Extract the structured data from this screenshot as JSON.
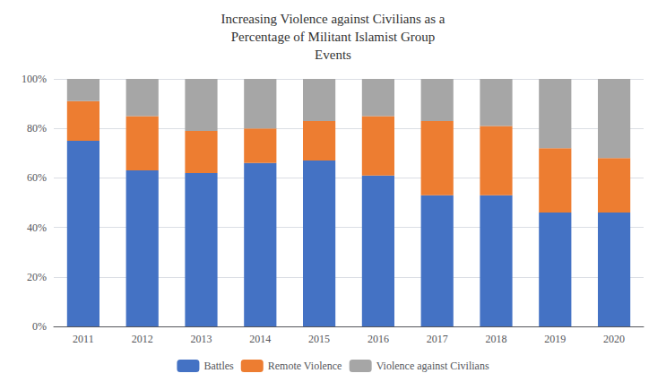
{
  "chart_data": {
    "type": "bar",
    "title": "Increasing Violence against Civilians as a\nPercentage of Militant Islamist Group\nEvents",
    "categories": [
      "2011",
      "2012",
      "2013",
      "2014",
      "2015",
      "2016",
      "2017",
      "2018",
      "2019",
      "2020"
    ],
    "series": [
      {
        "name": "Battles",
        "color": "#4472C4",
        "values": [
          75,
          63,
          62,
          66,
          67,
          61,
          53,
          53,
          46,
          46
        ]
      },
      {
        "name": "Remote Violence",
        "color": "#ED7D31",
        "values": [
          16,
          22,
          17,
          14,
          16,
          24,
          30,
          28,
          26,
          22
        ]
      },
      {
        "name": "Violence against Civilians",
        "color": "#A6A6A6",
        "values": [
          9,
          15,
          21,
          20,
          17,
          15,
          17,
          19,
          28,
          32
        ]
      }
    ],
    "stacked": true,
    "ylim": [
      0,
      100
    ],
    "yticks": [
      {
        "value": 0,
        "label": "0%"
      },
      {
        "value": 20,
        "label": "20%"
      },
      {
        "value": 40,
        "label": "40%"
      },
      {
        "value": 60,
        "label": "60%"
      },
      {
        "value": 80,
        "label": "80%"
      },
      {
        "value": 100,
        "label": "100%"
      }
    ],
    "grid": true,
    "legend": "bottom"
  }
}
